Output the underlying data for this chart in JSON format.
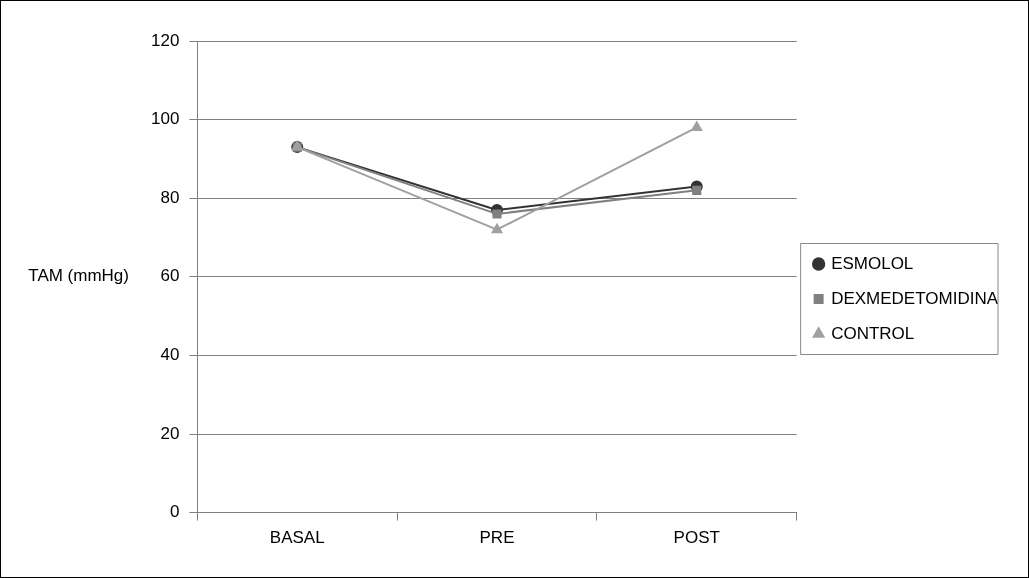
{
  "chart_data": {
    "type": "line",
    "ylabel": "TAM (mmHg)",
    "categories": [
      "BASAL",
      "PRE",
      "POST"
    ],
    "series": [
      {
        "name": "ESMOLOL",
        "color": "#333333",
        "marker": "circle",
        "values": [
          93,
          77,
          83
        ]
      },
      {
        "name": "DEXMEDETOMIDINA",
        "color": "#808080",
        "marker": "square",
        "values": [
          93,
          76,
          82
        ]
      },
      {
        "name": "CONTROL",
        "color": "#a0a0a0",
        "marker": "triangle",
        "values": [
          93,
          72,
          98
        ]
      }
    ],
    "ylim": [
      0,
      120
    ],
    "yticks": [
      0,
      20,
      40,
      60,
      80,
      100,
      120
    ],
    "grid": "y",
    "legend": "right"
  }
}
